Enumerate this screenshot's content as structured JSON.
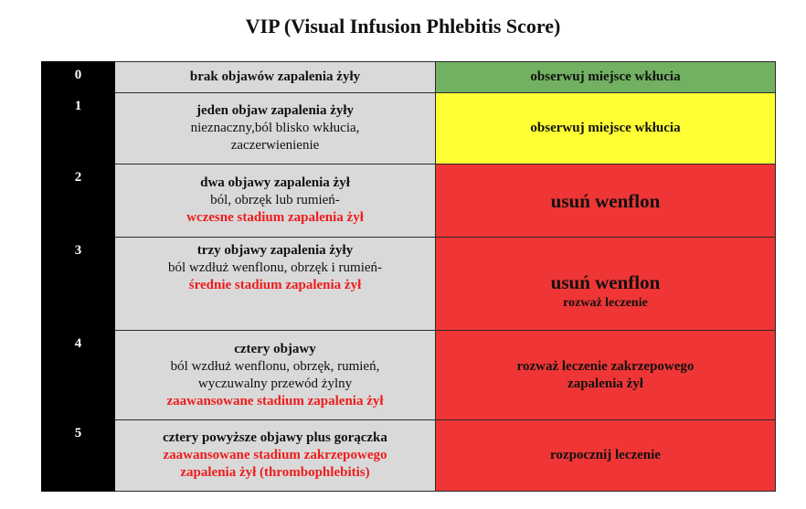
{
  "title": "VIP (Visual Infusion Phlebitis Score)",
  "colors": {
    "score_bg": "#000000",
    "desc_bg": "#d9d9d9",
    "green": "#72b162",
    "yellow": "#ffff33",
    "red": "#ef3535",
    "red_text": "#ee1c1c"
  },
  "rows": [
    {
      "score": "0",
      "heading": "brak objawów zapalenia żyły",
      "details": [],
      "stage": "",
      "action_main": "obserwuj miejsce wkłucia",
      "action_sub": "",
      "action_color": "#72b162"
    },
    {
      "score": "1",
      "heading": "jeden objaw zapalenia żyły",
      "details": [
        "nieznaczny,ból blisko wkłucia,",
        "zaczerwienienie"
      ],
      "stage": "",
      "action_main": "obserwuj miejsce wkłucia",
      "action_sub": "",
      "action_color": "#ffff33"
    },
    {
      "score": "2",
      "heading": "dwa objawy zapalenia żył",
      "details": [
        "ból, obrzęk lub rumień-"
      ],
      "stage": "wczesne stadium zapalenia żył",
      "action_main": "usuń wenflon",
      "action_sub": "",
      "action_color": "#ef3535"
    },
    {
      "score": "3",
      "heading": "trzy objawy zapalenia żyły",
      "details": [
        "ból wzdłuż wenflonu, obrzęk i rumień-"
      ],
      "stage": "średnie stadium zapalenia żył",
      "action_main": "usuń wenflon",
      "action_sub": "rozważ leczenie",
      "action_color": "#ef3535"
    },
    {
      "score": "4",
      "heading": "cztery objawy",
      "details": [
        "ból wzdłuż wenflonu, obrzęk, rumień,",
        "wyczuwalny przewód żylny"
      ],
      "stage": "zaawansowane stadium zapalenia żył",
      "action_main": "rozważ leczenie zakrzepowego",
      "action_sub": "zapalenia żył",
      "action_color": "#ef3535"
    },
    {
      "score": "5",
      "heading": "cztery powyższe objawy  plus gorączka",
      "details": [],
      "stage_lines": [
        "zaawansowane stadium zakrzepowego",
        "zapalenia żył (thrombophlebitis)"
      ],
      "action_main": "rozpocznij leczenie",
      "action_sub": "",
      "action_color": "#ef3535"
    }
  ]
}
